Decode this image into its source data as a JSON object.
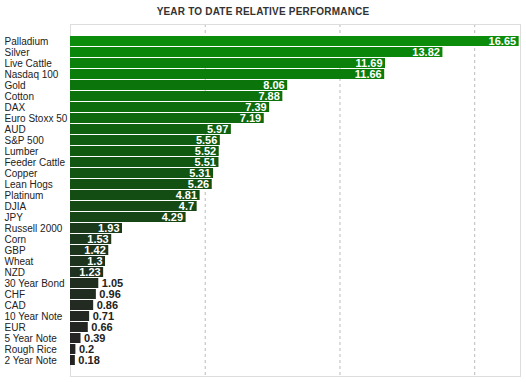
{
  "chart_data": {
    "type": "bar",
    "title": "YEAR TO DATE RELATIVE PERFORMANCE",
    "orientation": "horizontal",
    "categories": [
      "Palladium",
      "Silver",
      "Live Cattle",
      "Nasdaq 100",
      "Gold",
      "Cotton",
      "DAX",
      "Euro Stoxx 50",
      "AUD",
      "S&P 500",
      "Lumber",
      "Feeder Cattle",
      "Copper",
      "Lean Hogs",
      "Platinum",
      "DJIA",
      "JPY",
      "Russell 2000",
      "Corn",
      "GBP",
      "Wheat",
      "NZD",
      "30 Year Bond",
      "CHF",
      "CAD",
      "10 Year Note",
      "EUR",
      "5 Year Note",
      "Rough Rice",
      "2 Year Note"
    ],
    "values": [
      16.65,
      13.82,
      11.69,
      11.66,
      8.06,
      7.88,
      7.39,
      7.19,
      5.97,
      5.56,
      5.52,
      5.51,
      5.31,
      5.26,
      4.81,
      4.7,
      4.29,
      1.93,
      1.53,
      1.42,
      1.3,
      1.23,
      1.05,
      0.96,
      0.86,
      0.71,
      0.66,
      0.39,
      0.2,
      0.18
    ],
    "colors": [
      "#0b8c0b",
      "#0a870a",
      "#0b800b",
      "#0b7d0b",
      "#0b750b",
      "#0c720c",
      "#0d6d0d",
      "#0e690e",
      "#0f610f",
      "#105c10",
      "#105a10",
      "#115711",
      "#125412",
      "#135113",
      "#144d14",
      "#154a15",
      "#164616",
      "#1a3a1a",
      "#1c381c",
      "#1d351d",
      "#1e331e",
      "#1f311f",
      "#202e20",
      "#212c21",
      "#222a22",
      "#232823",
      "#242624",
      "#252525",
      "#242424",
      "#232323"
    ],
    "xlim": [
      0,
      16.7
    ],
    "xticks": [
      0,
      5,
      10,
      15
    ],
    "grid": true,
    "tick_labels": "y",
    "data_labels": true
  }
}
